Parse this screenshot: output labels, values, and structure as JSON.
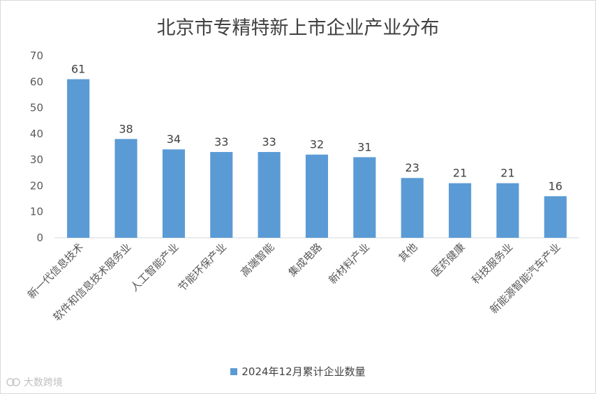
{
  "watermark": {
    "text": "大数跨境"
  },
  "chart_data": {
    "type": "bar",
    "title": "北京市专精特新上市企业产业分布",
    "categories": [
      "新一代信息技术",
      "软件和信息技术服务业",
      "人工智能产业",
      "节能环保产业",
      "高端智能",
      "集成电路",
      "新材料产业",
      "其他",
      "医药健康",
      "科技服务业",
      "新能源智能汽车产业"
    ],
    "series": [
      {
        "name": "2024年12月累计企业数量",
        "values": [
          61,
          38,
          34,
          33,
          33,
          32,
          31,
          23,
          21,
          21,
          16
        ],
        "color": "#5b9bd5"
      }
    ],
    "ylim": [
      0,
      70
    ],
    "yticks": [
      0,
      10,
      20,
      30,
      40,
      50,
      60,
      70
    ],
    "xlabel": "",
    "ylabel": "",
    "grid": false,
    "data_labels": true,
    "legend": "bottom"
  }
}
